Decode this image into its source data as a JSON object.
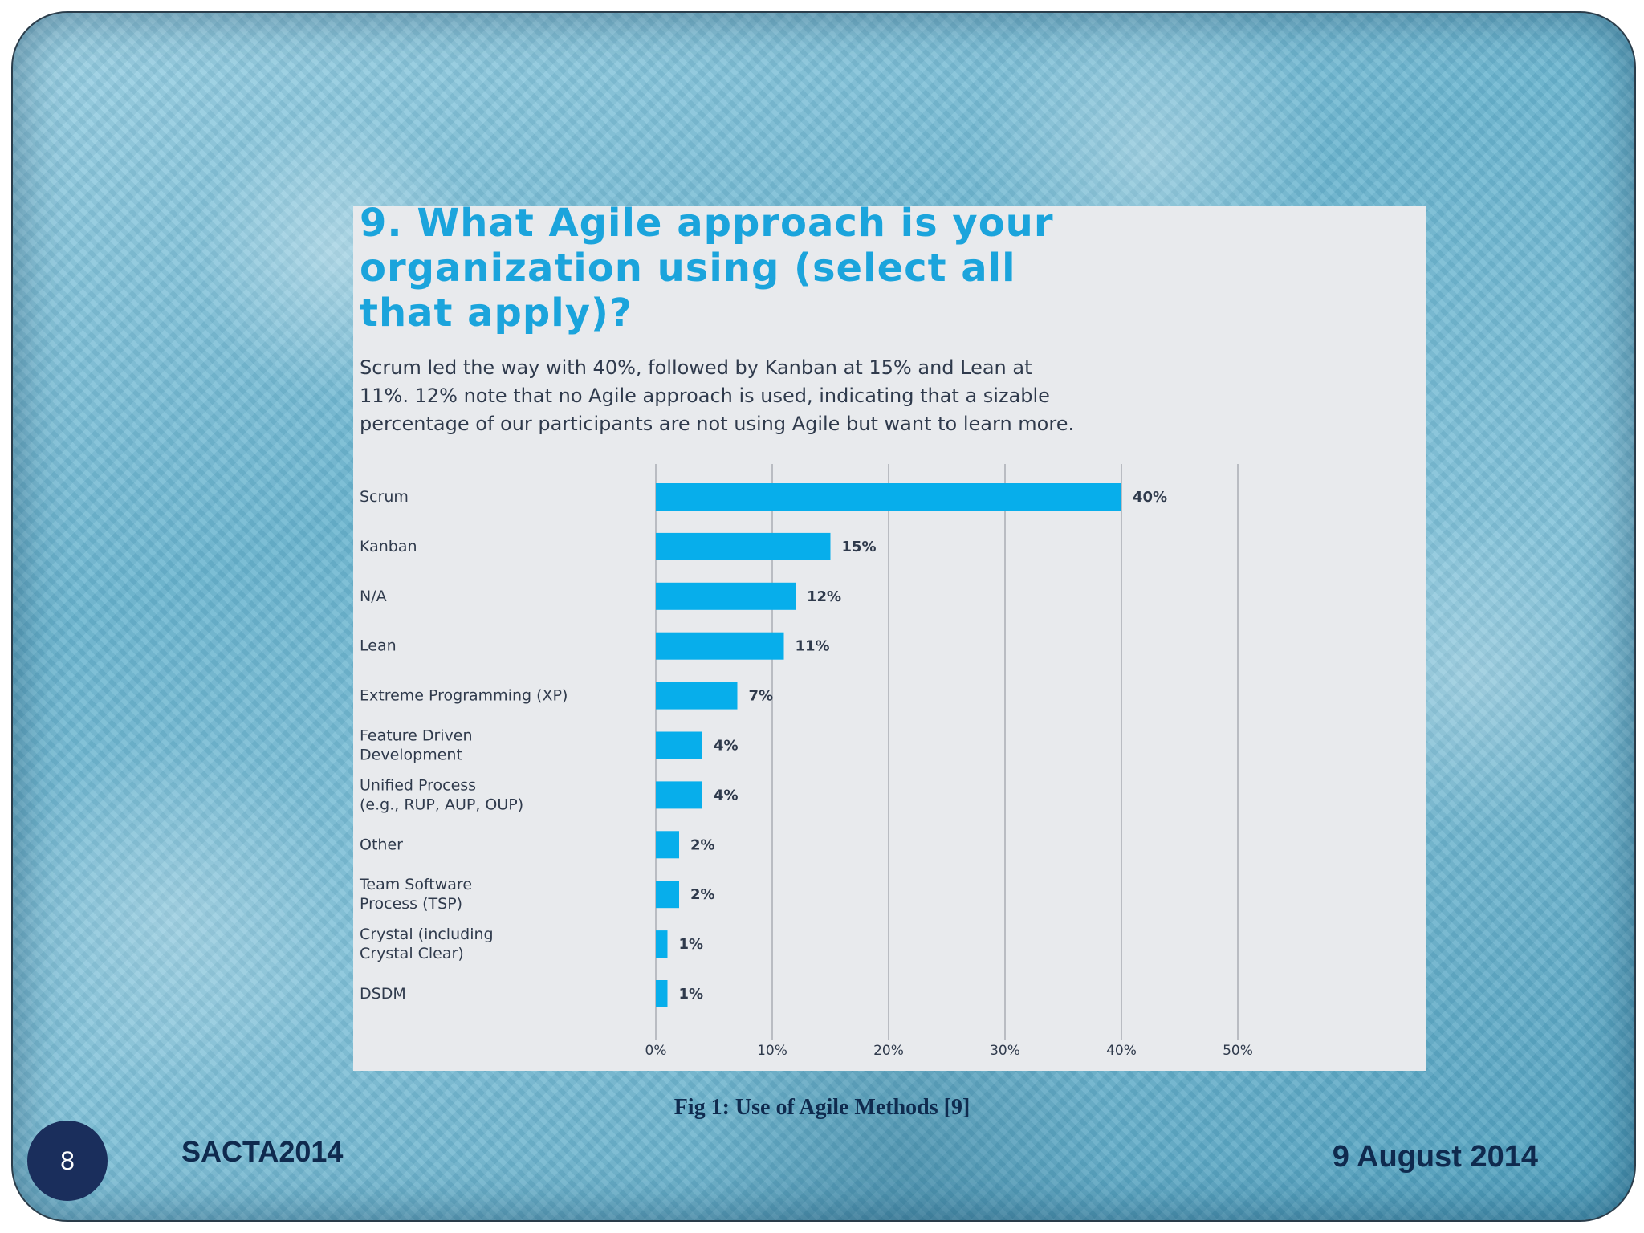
{
  "slide": {
    "number": "8",
    "footer_left": "SACTA2014",
    "footer_right": "9 August 2014",
    "caption": "Fig 1: Use of Agile Methods [9]"
  },
  "colors": {
    "bar": "#07aeeb",
    "title": "#1ba4dc",
    "text": "#2f3a4c",
    "grid": "#b9bcc2",
    "panel": "#e8eaed"
  },
  "chart_data": {
    "type": "bar",
    "orientation": "horizontal",
    "title": "9. What Agile approach is your\norganization using (select all\nthat apply)?",
    "subtitle": "Scrum led the way with 40%, followed by Kanban at 15% and Lean at\n11%. 12% note that no Agile approach is used, indicating that a sizable\npercentage of our participants are not using Agile but want to learn more.",
    "categories": [
      "Scrum",
      "Kanban",
      "N/A",
      "Lean",
      "Extreme Programming (XP)",
      "Feature Driven\nDevelopment",
      "Unified Process\n(e.g., RUP, AUP, OUP)",
      "Other",
      "Team Software\nProcess (TSP)",
      "Crystal (including\nCrystal Clear)",
      "DSDM"
    ],
    "values": [
      40,
      15,
      12,
      11,
      7,
      4,
      4,
      2,
      2,
      1,
      1
    ],
    "value_labels": [
      "40%",
      "15%",
      "12%",
      "11%",
      "7%",
      "4%",
      "4%",
      "2%",
      "2%",
      "1%",
      "1%"
    ],
    "xlim": [
      0,
      50
    ],
    "xticks": [
      0,
      10,
      20,
      30,
      40,
      50
    ],
    "xtick_labels": [
      "0%",
      "10%",
      "20%",
      "30%",
      "40%",
      "50%"
    ],
    "grid": true,
    "legend": "none"
  }
}
